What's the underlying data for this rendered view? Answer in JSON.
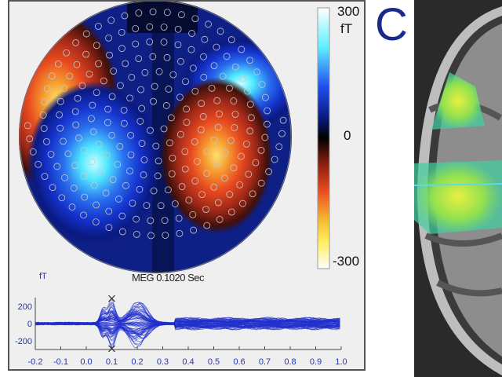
{
  "figure": {
    "panel_letter": "C",
    "topomap": {
      "title": "MEG 0.1020 Sec",
      "colorbar": {
        "max_label": "300",
        "unit": "fT",
        "mid_label": "0",
        "min_label": "-300"
      }
    },
    "waveform": {
      "unit_label": "fT",
      "y_ticks": [
        "200",
        "0",
        "-200"
      ],
      "x_ticks": [
        "-0.2",
        "-0.1",
        "0.0",
        "0.1",
        "0.2",
        "0.3",
        "0.4",
        "0.5",
        "0.6",
        "0.7",
        "0.8",
        "0.9",
        "1.0"
      ],
      "xlim": [
        -0.2,
        1.0
      ],
      "ylim": [
        -300,
        300
      ],
      "marker_time": 0.1,
      "line_color": "#1f2fcc"
    }
  }
}
